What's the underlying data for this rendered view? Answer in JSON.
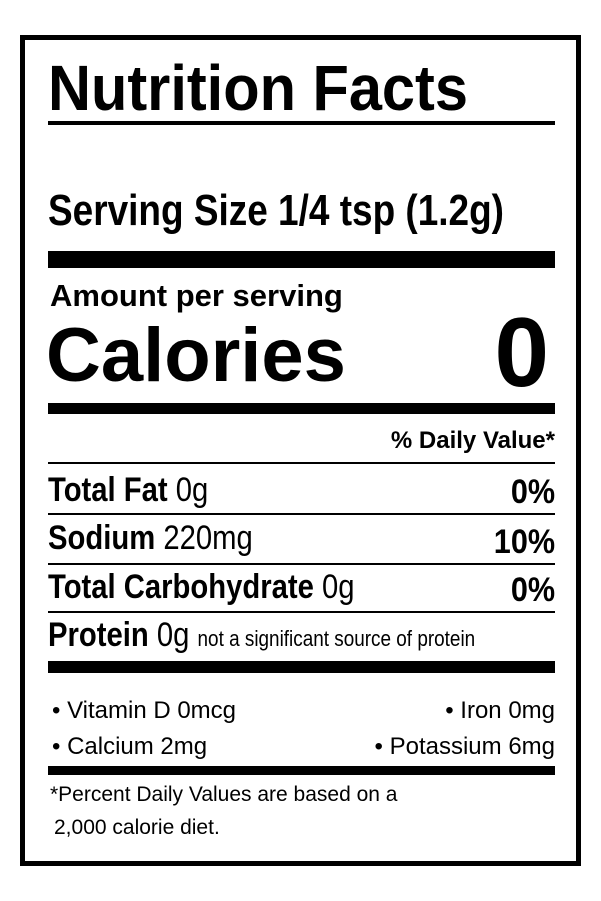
{
  "label": {
    "title": "Nutrition Facts",
    "serving_size": "Serving Size 1/4 tsp (1.2g)",
    "amount_per_serving": "Amount per serving",
    "calories_label": "Calories",
    "calories_value": "0",
    "daily_value_header": "% Daily Value*",
    "nutrients": [
      {
        "name": "Total Fat",
        "amount": "0g",
        "dv": "0%"
      },
      {
        "name": "Sodium",
        "amount": "220mg",
        "dv": "10%"
      },
      {
        "name": "Total Carbohydrate",
        "amount": "0g",
        "dv": "0%"
      },
      {
        "name": "Protein",
        "amount": "0g",
        "note": "not a significant source of protein"
      }
    ],
    "vitamins": [
      [
        "• Vitamin D 0mcg",
        "• Iron 0mg"
      ],
      [
        "• Calcium 2mg",
        "• Potassium 6mg"
      ]
    ],
    "footnote": [
      "*Percent Daily Values are based on a",
      "2,000 calorie diet."
    ]
  }
}
